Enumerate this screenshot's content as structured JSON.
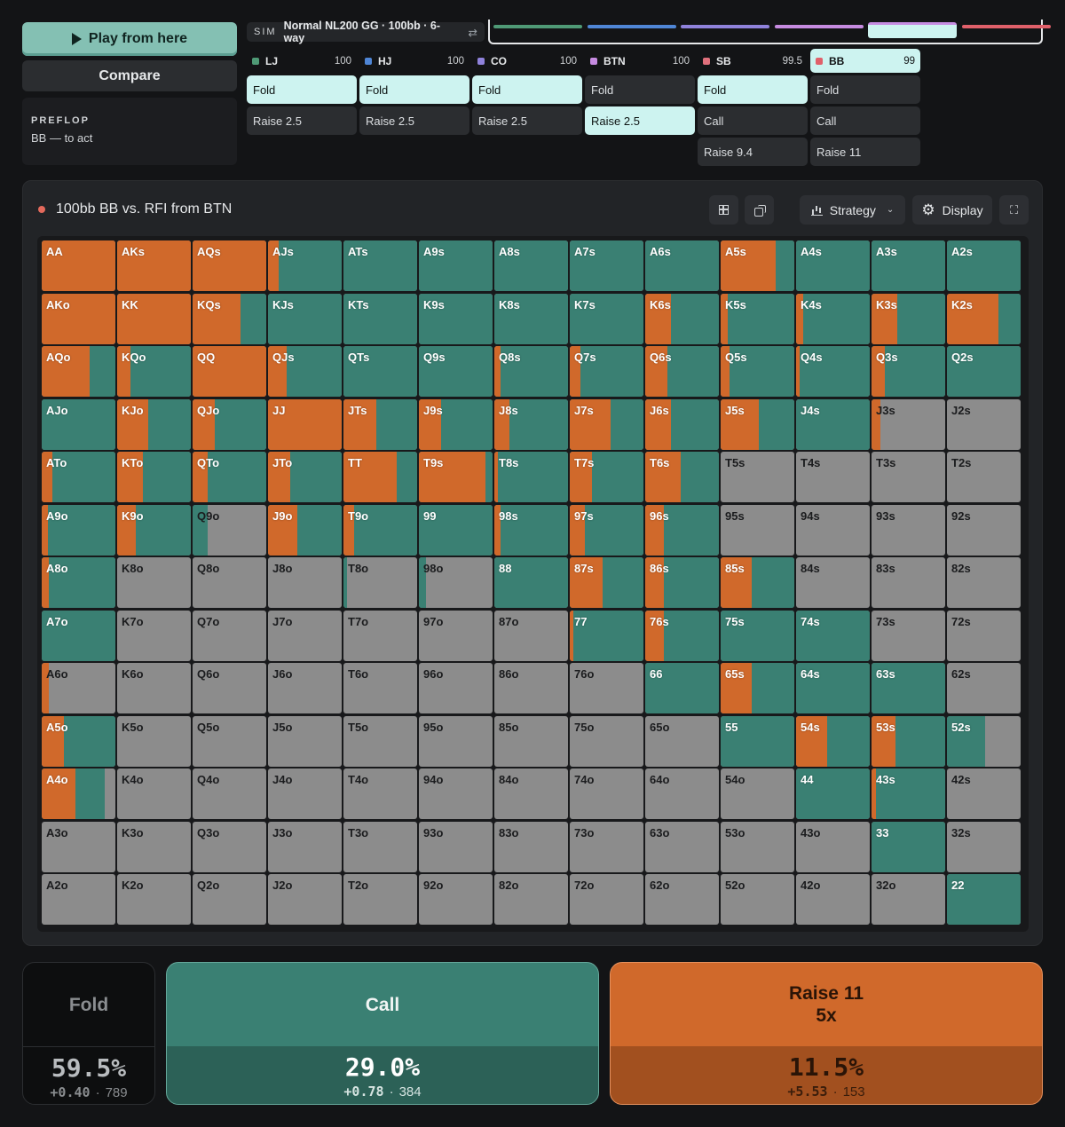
{
  "left": {
    "play_label": "Play from here",
    "compare_label": "Compare",
    "street": "PREFLOP",
    "to_act": "BB — to act"
  },
  "sim": {
    "tag": "SIM",
    "name": "Normal NL200 GG · 100bb · 6-way",
    "swap": "⇄"
  },
  "timeline": [
    "#4f9a76",
    "#4f86d6",
    "#8f82db",
    "#c68be0",
    "#e0707c",
    "#e0606a"
  ],
  "positions": [
    {
      "name": "LJ",
      "stack": "100",
      "color": "#4f9a76",
      "actions": [
        "Fold",
        "Raise 2.5"
      ],
      "selected": 0
    },
    {
      "name": "HJ",
      "stack": "100",
      "color": "#4f86d6",
      "actions": [
        "Fold",
        "Raise 2.5"
      ],
      "selected": 0
    },
    {
      "name": "CO",
      "stack": "100",
      "color": "#8f82db",
      "actions": [
        "Fold",
        "Raise 2.5"
      ],
      "selected": 0
    },
    {
      "name": "BTN",
      "stack": "100",
      "color": "#c68be0",
      "actions": [
        "Fold",
        "Raise 2.5"
      ],
      "selected": 1
    },
    {
      "name": "SB",
      "stack": "99.5",
      "color": "#e0707c",
      "actions": [
        "Fold",
        "Call",
        "Raise 9.4"
      ],
      "selected": 0
    },
    {
      "name": "BB",
      "stack": "99",
      "color": "#e0606a",
      "actions": [
        "Fold",
        "Call",
        "Raise 11"
      ],
      "selected": -1,
      "active": true
    }
  ],
  "panel": {
    "title": "100bb BB vs. RFI from BTN",
    "strategy_label": "Strategy",
    "display_label": "Display",
    "colors": {
      "raise": "#d0692b",
      "call": "#3a8073",
      "fold": "#8c8c8c"
    }
  },
  "grid": {
    "ranks": [
      "A",
      "K",
      "Q",
      "J",
      "T",
      "9",
      "8",
      "7",
      "6",
      "5",
      "4",
      "3",
      "2"
    ],
    "rows": [
      [
        [
          1,
          0
        ],
        [
          1,
          0
        ],
        [
          1,
          0
        ],
        [
          0.15,
          0.85
        ],
        [
          0,
          1
        ],
        [
          0,
          1
        ],
        [
          0,
          1
        ],
        [
          0,
          1
        ],
        [
          0,
          1
        ],
        [
          0.75,
          0.25
        ],
        [
          0,
          1
        ],
        [
          0,
          1
        ],
        [
          0,
          1
        ]
      ],
      [
        [
          1,
          0
        ],
        [
          1,
          0
        ],
        [
          0.65,
          0.35
        ],
        [
          0,
          1
        ],
        [
          0,
          1
        ],
        [
          0,
          1
        ],
        [
          0,
          1
        ],
        [
          0,
          1
        ],
        [
          0.35,
          0.65
        ],
        [
          0.1,
          0.9
        ],
        [
          0.1,
          0.9
        ],
        [
          0.35,
          0.65
        ],
        [
          0.7,
          0.3
        ]
      ],
      [
        [
          0.65,
          0.35
        ],
        [
          0.18,
          0.82
        ],
        [
          1,
          0
        ],
        [
          0.25,
          0.75
        ],
        [
          0,
          1
        ],
        [
          0,
          1
        ],
        [
          0.08,
          0.92
        ],
        [
          0.15,
          0.85
        ],
        [
          0.3,
          0.7
        ],
        [
          0.12,
          0.88
        ],
        [
          0.05,
          0.95
        ],
        [
          0.18,
          0.82
        ],
        [
          0,
          1
        ]
      ],
      [
        [
          0,
          1
        ],
        [
          0.42,
          0.58
        ],
        [
          0.3,
          0.7
        ],
        [
          1,
          0
        ],
        [
          0.45,
          0.55
        ],
        [
          0.3,
          0.7
        ],
        [
          0.2,
          0.8
        ],
        [
          0.55,
          0.45
        ],
        [
          0.35,
          0.65
        ],
        [
          0.52,
          0.48
        ],
        [
          0,
          1
        ],
        [
          0.12,
          0
        ],
        [
          0,
          0
        ]
      ],
      [
        [
          0.15,
          0.85
        ],
        [
          0.35,
          0.65
        ],
        [
          0.2,
          0.8
        ],
        [
          0.3,
          0.7
        ],
        [
          0.72,
          0.28
        ],
        [
          0.9,
          0.1
        ],
        [
          0.05,
          0.95
        ],
        [
          0.3,
          0.7
        ],
        [
          0.48,
          0.52
        ],
        [
          0,
          0
        ],
        [
          0,
          0
        ],
        [
          0,
          0
        ],
        [
          0,
          0
        ]
      ],
      [
        [
          0.08,
          0.92
        ],
        [
          0.25,
          0.75
        ],
        [
          0,
          0.2
        ],
        [
          0.4,
          0.6
        ],
        [
          0.15,
          0.85
        ],
        [
          0,
          1
        ],
        [
          0.08,
          0.92
        ],
        [
          0.2,
          0.8
        ],
        [
          0.25,
          0.75
        ],
        [
          0,
          0
        ],
        [
          0,
          0
        ],
        [
          0,
          0
        ],
        [
          0,
          0
        ]
      ],
      [
        [
          0.1,
          0.9
        ],
        [
          0,
          0
        ],
        [
          0,
          0
        ],
        [
          0,
          0
        ],
        [
          0,
          0.05
        ],
        [
          0,
          0.1
        ],
        [
          0,
          1
        ],
        [
          0.45,
          0.55
        ],
        [
          0.25,
          0.75
        ],
        [
          0.42,
          0.58
        ],
        [
          0,
          0
        ],
        [
          0,
          0
        ],
        [
          0,
          0
        ]
      ],
      [
        [
          0,
          1
        ],
        [
          0,
          0
        ],
        [
          0,
          0
        ],
        [
          0,
          0
        ],
        [
          0,
          0
        ],
        [
          0,
          0
        ],
        [
          0,
          0
        ],
        [
          0.05,
          0.95
        ],
        [
          0.25,
          0.75
        ],
        [
          0,
          1
        ],
        [
          0,
          1
        ],
        [
          0,
          0
        ],
        [
          0,
          0
        ]
      ],
      [
        [
          0.1,
          0
        ],
        [
          0,
          0
        ],
        [
          0,
          0
        ],
        [
          0,
          0
        ],
        [
          0,
          0
        ],
        [
          0,
          0
        ],
        [
          0,
          0
        ],
        [
          0,
          0
        ],
        [
          0,
          1
        ],
        [
          0.42,
          0.58
        ],
        [
          0,
          1
        ],
        [
          0,
          1
        ],
        [
          0,
          0
        ]
      ],
      [
        [
          0.3,
          0.7
        ],
        [
          0,
          0
        ],
        [
          0,
          0
        ],
        [
          0,
          0
        ],
        [
          0,
          0
        ],
        [
          0,
          0
        ],
        [
          0,
          0
        ],
        [
          0,
          0
        ],
        [
          0,
          0
        ],
        [
          0,
          1
        ],
        [
          0.42,
          0.58
        ],
        [
          0.32,
          0.68
        ],
        [
          0,
          0.52
        ]
      ],
      [
        [
          0.46,
          0.4
        ],
        [
          0,
          0
        ],
        [
          0,
          0
        ],
        [
          0,
          0
        ],
        [
          0,
          0
        ],
        [
          0,
          0
        ],
        [
          0,
          0
        ],
        [
          0,
          0
        ],
        [
          0,
          0
        ],
        [
          0,
          0
        ],
        [
          0,
          1
        ],
        [
          0.06,
          0.94
        ],
        [
          0,
          0
        ]
      ],
      [
        [
          0,
          0
        ],
        [
          0,
          0
        ],
        [
          0,
          0
        ],
        [
          0,
          0
        ],
        [
          0,
          0
        ],
        [
          0,
          0
        ],
        [
          0,
          0
        ],
        [
          0,
          0
        ],
        [
          0,
          0
        ],
        [
          0,
          0
        ],
        [
          0,
          0
        ],
        [
          0,
          1
        ],
        [
          0,
          0
        ]
      ],
      [
        [
          0,
          0
        ],
        [
          0,
          0
        ],
        [
          0,
          0
        ],
        [
          0,
          0
        ],
        [
          0,
          0
        ],
        [
          0,
          0
        ],
        [
          0,
          0
        ],
        [
          0,
          0
        ],
        [
          0,
          0
        ],
        [
          0,
          0
        ],
        [
          0,
          0
        ],
        [
          0,
          0
        ],
        [
          0,
          1
        ]
      ]
    ]
  },
  "summary": {
    "fold": {
      "label": "Fold",
      "pct": "59.5%",
      "ev": "+0.40",
      "combos": "789"
    },
    "call": {
      "label": "Call",
      "pct": "29.0%",
      "ev": "+0.78",
      "combos": "384"
    },
    "raise": {
      "label": "Raise 11",
      "sub": "5x",
      "pct": "11.5%",
      "ev": "+5.53",
      "combos": "153"
    }
  }
}
